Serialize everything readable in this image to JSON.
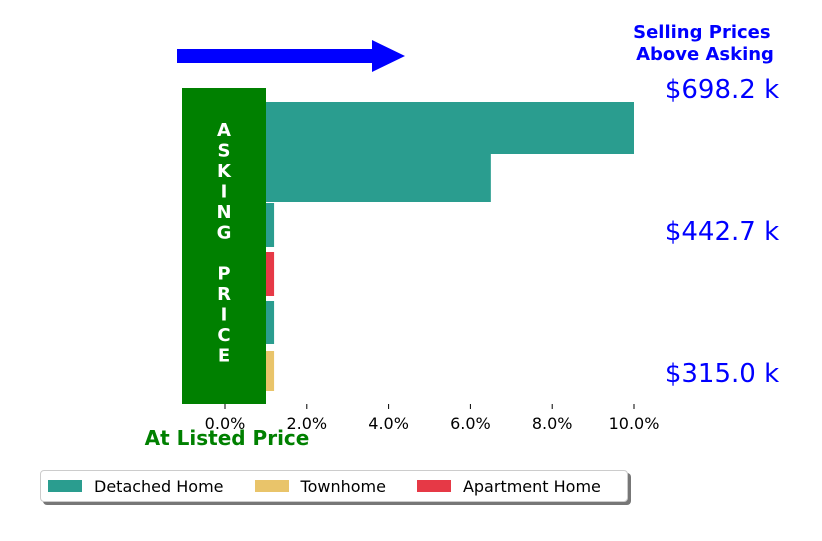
{
  "chart_data": {
    "type": "bar",
    "orientation": "horizontal",
    "title": "Selling Prices Above Asking",
    "title_lines": [
      "Selling Prices",
      "Above Asking"
    ],
    "xlabel": "At Listed Price",
    "xlim": [
      -1.0,
      10.0
    ],
    "x_ticks": [
      0,
      2,
      4,
      6,
      8,
      10
    ],
    "x_tick_labels": [
      "0.0%",
      "2.0%",
      "4.0%",
      "6.0%",
      "8.0%",
      "10.0%"
    ],
    "grid": false,
    "legend_placement": "bottom-left",
    "banner_text": "ASKING PRICE",
    "banner_lines": [
      "A",
      "S",
      "K",
      "I",
      "N",
      "G",
      "",
      "P",
      "R",
      "I",
      "C",
      "E"
    ],
    "price_labels": [
      "$698.2 k",
      "$442.7 k",
      "$315.0 k"
    ],
    "bars": [
      {
        "series": "Detached Home",
        "value": 10.0
      },
      {
        "series": "Detached Home",
        "value": 6.5
      },
      {
        "series": "Detached Home",
        "value": 1.2
      },
      {
        "series": "Apartment Home",
        "value": 1.2
      },
      {
        "series": "Detached Home",
        "value": 1.2
      },
      {
        "series": "Townhome",
        "value": 1.2
      }
    ],
    "series": [
      {
        "name": "Detached Home",
        "color": "#2a9d8f"
      },
      {
        "name": "Townhome",
        "color": "#e9c46a"
      },
      {
        "name": "Apartment Home",
        "color": "#e63946"
      }
    ],
    "colors": {
      "banner": "#008000",
      "banner_text": "#ffffff",
      "arrow": "#0000ff",
      "title": "#0000ff",
      "price_labels": "#0000ff",
      "xlabel": "#008000"
    }
  },
  "legend": {
    "items": [
      {
        "label": "Detached Home",
        "color": "#2a9d8f"
      },
      {
        "label": "Townhome",
        "color": "#e9c46a"
      },
      {
        "label": "Apartment Home",
        "color": "#e63946"
      }
    ]
  }
}
